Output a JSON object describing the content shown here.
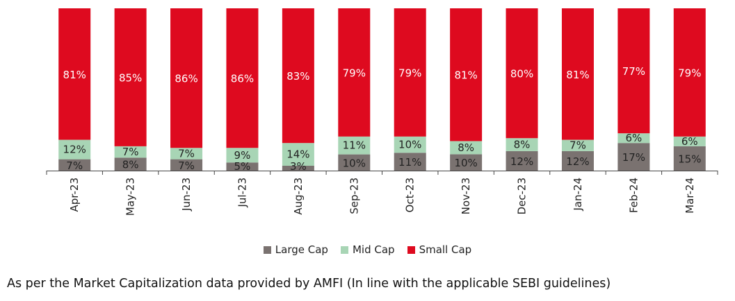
{
  "chart_data": {
    "type": "bar",
    "stacked": true,
    "normalized": true,
    "categories": [
      "Apr-23",
      "May-23",
      "Jun-23",
      "Jul-23",
      "Aug-23",
      "Sep-23",
      "Oct-23",
      "Nov-23",
      "Dec-23",
      "Jan-24",
      "Feb-24",
      "Mar-24"
    ],
    "series": [
      {
        "name": "Large Cap",
        "color": "#7a7270",
        "values": [
          7,
          8,
          7,
          5,
          3,
          10,
          11,
          10,
          12,
          12,
          17,
          15
        ],
        "labels": [
          "7%",
          "8%",
          "7%",
          "5%",
          "3%",
          "10%",
          "11%",
          "10%",
          "12%",
          "12%",
          "17%",
          "15%"
        ]
      },
      {
        "name": "Mid Cap",
        "color": "#a8d5b5",
        "values": [
          12,
          7,
          7,
          9,
          14,
          11,
          10,
          8,
          8,
          7,
          6,
          6
        ],
        "labels": [
          "12%",
          "7%",
          "7%",
          "9%",
          "14%",
          "11%",
          "10%",
          "8%",
          "8%",
          "7%",
          "6%",
          "6%"
        ]
      },
      {
        "name": "Small Cap",
        "color": "#de0a1f",
        "values": [
          81,
          85,
          86,
          86,
          83,
          79,
          79,
          81,
          80,
          81,
          77,
          79
        ],
        "labels": [
          "81%",
          "85%",
          "86%",
          "86%",
          "83%",
          "79%",
          "79%",
          "81%",
          "80%",
          "81%",
          "77%",
          "79%"
        ]
      }
    ],
    "legend_position": "bottom",
    "grid": false,
    "ylim": [
      0,
      100
    ]
  },
  "legend": {
    "items": [
      {
        "label": "Large Cap",
        "color": "#7a7270"
      },
      {
        "label": "Mid Cap",
        "color": "#a8d5b5"
      },
      {
        "label": "Small Cap",
        "color": "#de0a1f"
      }
    ]
  },
  "footnote": "As per the Market Capitalization data provided by AMFI (In line with the applicable SEBI guidelines)"
}
